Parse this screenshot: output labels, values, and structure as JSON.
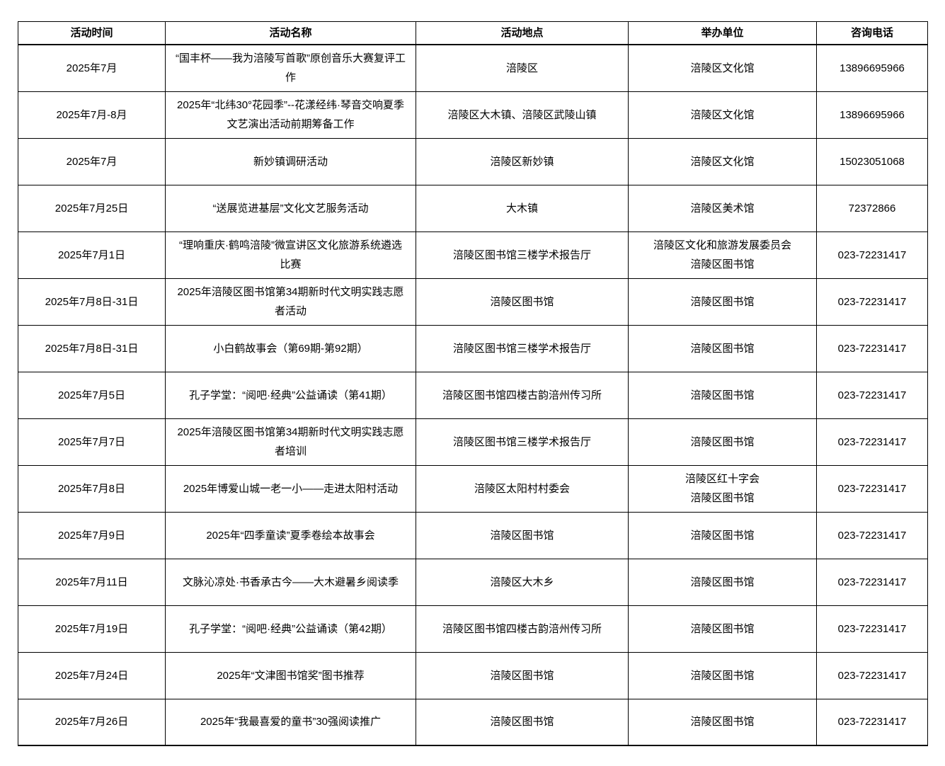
{
  "table": {
    "headers": [
      "活动时间",
      "活动名称",
      "活动地点",
      "举办单位",
      "咨询电话"
    ],
    "rows": [
      [
        "2025年7月",
        "“国丰杯——我为涪陵写首歌”原创音乐大赛复评工作",
        "涪陵区",
        "涪陵区文化馆",
        "13896695966"
      ],
      [
        "2025年7月-8月",
        "2025年“北纬30°花园季”--花漾经纬·琴音交响夏季文艺演出活动前期筹备工作",
        "涪陵区大木镇、涪陵区武陵山镇",
        "涪陵区文化馆",
        "13896695966"
      ],
      [
        "2025年7月",
        "新妙镇调研活动",
        "涪陵区新妙镇",
        "涪陵区文化馆",
        "15023051068"
      ],
      [
        "2025年7月25日",
        "“送展览进基层”文化文艺服务活动",
        "大木镇",
        "涪陵区美术馆",
        "72372866"
      ],
      [
        "2025年7月1日",
        "“理响重庆·鹤鸣涪陵”微宣讲区文化旅游系统遴选比赛",
        "涪陵区图书馆三楼学术报告厅",
        "涪陵区文化和旅游发展委员会\n涪陵区图书馆",
        "023-72231417"
      ],
      [
        "2025年7月8日-31日",
        "2025年涪陵区图书馆第34期新时代文明实践志愿者活动",
        "涪陵区图书馆",
        "涪陵区图书馆",
        "023-72231417"
      ],
      [
        "2025年7月8日-31日",
        "小白鹤故事会（第69期-第92期）",
        "涪陵区图书馆三楼学术报告厅",
        "涪陵区图书馆",
        "023-72231417"
      ],
      [
        "2025年7月5日",
        "孔子学堂：“阅吧·经典”公益诵读（第41期）",
        "涪陵区图书馆四楼古韵涪州传习所",
        "涪陵区图书馆",
        "023-72231417"
      ],
      [
        "2025年7月7日",
        "2025年涪陵区图书馆第34期新时代文明实践志愿者培训",
        "涪陵区图书馆三楼学术报告厅",
        "涪陵区图书馆",
        "023-72231417"
      ],
      [
        "2025年7月8日",
        "2025年博爱山城一老一小——走进太阳村活动",
        "涪陵区太阳村村委会",
        "涪陵区红十字会\n涪陵区图书馆",
        "023-72231417"
      ],
      [
        "2025年7月9日",
        "2025年“四季童读”夏季卷绘本故事会",
        "涪陵区图书馆",
        "涪陵区图书馆",
        "023-72231417"
      ],
      [
        "2025年7月11日",
        "文脉沁凉处·书香承古今——大木避暑乡阅读季",
        "涪陵区大木乡",
        "涪陵区图书馆",
        "023-72231417"
      ],
      [
        "2025年7月19日",
        "孔子学堂：“阅吧·经典”公益诵读（第42期）",
        "涪陵区图书馆四楼古韵涪州传习所",
        "涪陵区图书馆",
        "023-72231417"
      ],
      [
        "2025年7月24日",
        "2025年“文津图书馆奖”图书推荐",
        "涪陵区图书馆",
        "涪陵区图书馆",
        "023-72231417"
      ],
      [
        "2025年7月26日",
        "2025年“我最喜爱的童书”30强阅读推广",
        "涪陵区图书馆",
        "涪陵区图书馆",
        "023-72231417"
      ]
    ]
  },
  "colors": {
    "border": "#000000",
    "text": "#000000",
    "background": "#ffffff"
  }
}
